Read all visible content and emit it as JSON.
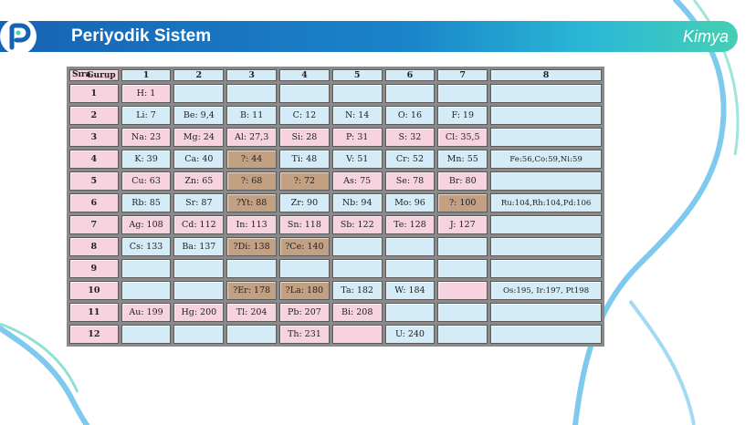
{
  "header": {
    "title": "Periyodik Sistem",
    "subject": "Kimya"
  },
  "table": {
    "corner_top": "Gurup",
    "corner_bottom": "Sıra",
    "columns": [
      "1",
      "2",
      "3",
      "4",
      "5",
      "6",
      "7",
      "8"
    ],
    "rows": [
      {
        "label": "1",
        "cells": [
          {
            "t": "H: 1",
            "c": "pink"
          },
          {
            "t": "",
            "c": "blue"
          },
          {
            "t": "",
            "c": "blue"
          },
          {
            "t": "",
            "c": "blue"
          },
          {
            "t": "",
            "c": "blue"
          },
          {
            "t": "",
            "c": "blue"
          },
          {
            "t": "",
            "c": "blue"
          },
          {
            "t": "",
            "c": "blue"
          }
        ]
      },
      {
        "label": "2",
        "cells": [
          {
            "t": "Li: 7",
            "c": "blue"
          },
          {
            "t": "Be: 9,4",
            "c": "blue"
          },
          {
            "t": "B: 11",
            "c": "blue"
          },
          {
            "t": "C: 12",
            "c": "blue"
          },
          {
            "t": "N: 14",
            "c": "blue"
          },
          {
            "t": "O: 16",
            "c": "blue"
          },
          {
            "t": "F: 19",
            "c": "blue"
          },
          {
            "t": "",
            "c": "blue"
          }
        ]
      },
      {
        "label": "3",
        "cells": [
          {
            "t": "Na: 23",
            "c": "pink"
          },
          {
            "t": "Mg: 24",
            "c": "pink"
          },
          {
            "t": "Al: 27,3",
            "c": "pink"
          },
          {
            "t": "Si: 28",
            "c": "pink"
          },
          {
            "t": "P: 31",
            "c": "pink"
          },
          {
            "t": "S: 32",
            "c": "pink"
          },
          {
            "t": "Cl: 35,5",
            "c": "pink"
          },
          {
            "t": "",
            "c": "blue"
          }
        ]
      },
      {
        "label": "4",
        "cells": [
          {
            "t": "K: 39",
            "c": "blue"
          },
          {
            "t": "Ca: 40",
            "c": "blue"
          },
          {
            "t": "?: 44",
            "c": "brown"
          },
          {
            "t": "Ti: 48",
            "c": "blue"
          },
          {
            "t": "V: 51",
            "c": "blue"
          },
          {
            "t": "Cr: 52",
            "c": "blue"
          },
          {
            "t": "Mn: 55",
            "c": "blue"
          },
          {
            "t": "Fe:56,Co:59,Ni:59",
            "c": "blue"
          }
        ]
      },
      {
        "label": "5",
        "cells": [
          {
            "t": "Cu: 63",
            "c": "pink"
          },
          {
            "t": "Zn: 65",
            "c": "pink"
          },
          {
            "t": "?: 68",
            "c": "brown"
          },
          {
            "t": "?: 72",
            "c": "brown"
          },
          {
            "t": "As: 75",
            "c": "pink"
          },
          {
            "t": "Se: 78",
            "c": "pink"
          },
          {
            "t": "Br: 80",
            "c": "pink"
          },
          {
            "t": "",
            "c": "blue"
          }
        ]
      },
      {
        "label": "6",
        "cells": [
          {
            "t": "Rb: 85",
            "c": "blue"
          },
          {
            "t": "Sr: 87",
            "c": "blue"
          },
          {
            "t": "?Yt: 88",
            "c": "brown"
          },
          {
            "t": "Zr: 90",
            "c": "blue"
          },
          {
            "t": "Nb: 94",
            "c": "blue"
          },
          {
            "t": "Mo: 96",
            "c": "blue"
          },
          {
            "t": "?: 100",
            "c": "brown"
          },
          {
            "t": "Ru:104,Rh:104,Pd:106",
            "c": "blue"
          }
        ]
      },
      {
        "label": "7",
        "cells": [
          {
            "t": "Ag: 108",
            "c": "pink"
          },
          {
            "t": "Cd: 112",
            "c": "pink"
          },
          {
            "t": "In: 113",
            "c": "pink"
          },
          {
            "t": "Sn: 118",
            "c": "pink"
          },
          {
            "t": "Sb: 122",
            "c": "pink"
          },
          {
            "t": "Te: 128",
            "c": "pink"
          },
          {
            "t": "J: 127",
            "c": "pink"
          },
          {
            "t": "",
            "c": "blue"
          }
        ]
      },
      {
        "label": "8",
        "cells": [
          {
            "t": "Cs: 133",
            "c": "blue"
          },
          {
            "t": "Ba: 137",
            "c": "blue"
          },
          {
            "t": "?Di: 138",
            "c": "brown"
          },
          {
            "t": "?Ce: 140",
            "c": "brown"
          },
          {
            "t": "",
            "c": "blue"
          },
          {
            "t": "",
            "c": "blue"
          },
          {
            "t": "",
            "c": "blue"
          },
          {
            "t": "",
            "c": "blue"
          }
        ]
      },
      {
        "label": "9",
        "cells": [
          {
            "t": "",
            "c": "blue"
          },
          {
            "t": "",
            "c": "blue"
          },
          {
            "t": "",
            "c": "blue"
          },
          {
            "t": "",
            "c": "blue"
          },
          {
            "t": "",
            "c": "blue"
          },
          {
            "t": "",
            "c": "blue"
          },
          {
            "t": "",
            "c": "blue"
          },
          {
            "t": "",
            "c": "blue"
          }
        ]
      },
      {
        "label": "10",
        "cells": [
          {
            "t": "",
            "c": "blue"
          },
          {
            "t": "",
            "c": "blue"
          },
          {
            "t": "?Er: 178",
            "c": "brown"
          },
          {
            "t": "?La: 180",
            "c": "brown"
          },
          {
            "t": "Ta: 182",
            "c": "blue"
          },
          {
            "t": "W: 184",
            "c": "blue"
          },
          {
            "t": "",
            "c": "pink"
          },
          {
            "t": "Os:195, Ir:197, Pt198",
            "c": "blue"
          }
        ]
      },
      {
        "label": "11",
        "cells": [
          {
            "t": "Au: 199",
            "c": "pink"
          },
          {
            "t": "Hg: 200",
            "c": "pink"
          },
          {
            "t": "Tl: 204",
            "c": "pink"
          },
          {
            "t": "Pb: 207",
            "c": "pink"
          },
          {
            "t": "Bi: 208",
            "c": "pink"
          },
          {
            "t": "",
            "c": "blue"
          },
          {
            "t": "",
            "c": "blue"
          },
          {
            "t": "",
            "c": "blue"
          }
        ]
      },
      {
        "label": "12",
        "cells": [
          {
            "t": "",
            "c": "blue"
          },
          {
            "t": "",
            "c": "blue"
          },
          {
            "t": "",
            "c": "blue"
          },
          {
            "t": "Th: 231",
            "c": "pink"
          },
          {
            "t": "",
            "c": "pink"
          },
          {
            "t": "U: 240",
            "c": "blue"
          },
          {
            "t": "",
            "c": "blue"
          },
          {
            "t": "",
            "c": "blue"
          }
        ]
      }
    ]
  },
  "colors": {
    "pink": "#f7d3df",
    "blue": "#d3ecf8",
    "brown": "#c4a082",
    "brand_blue": "#1763b3",
    "accent_teal": "#45cfb4"
  }
}
